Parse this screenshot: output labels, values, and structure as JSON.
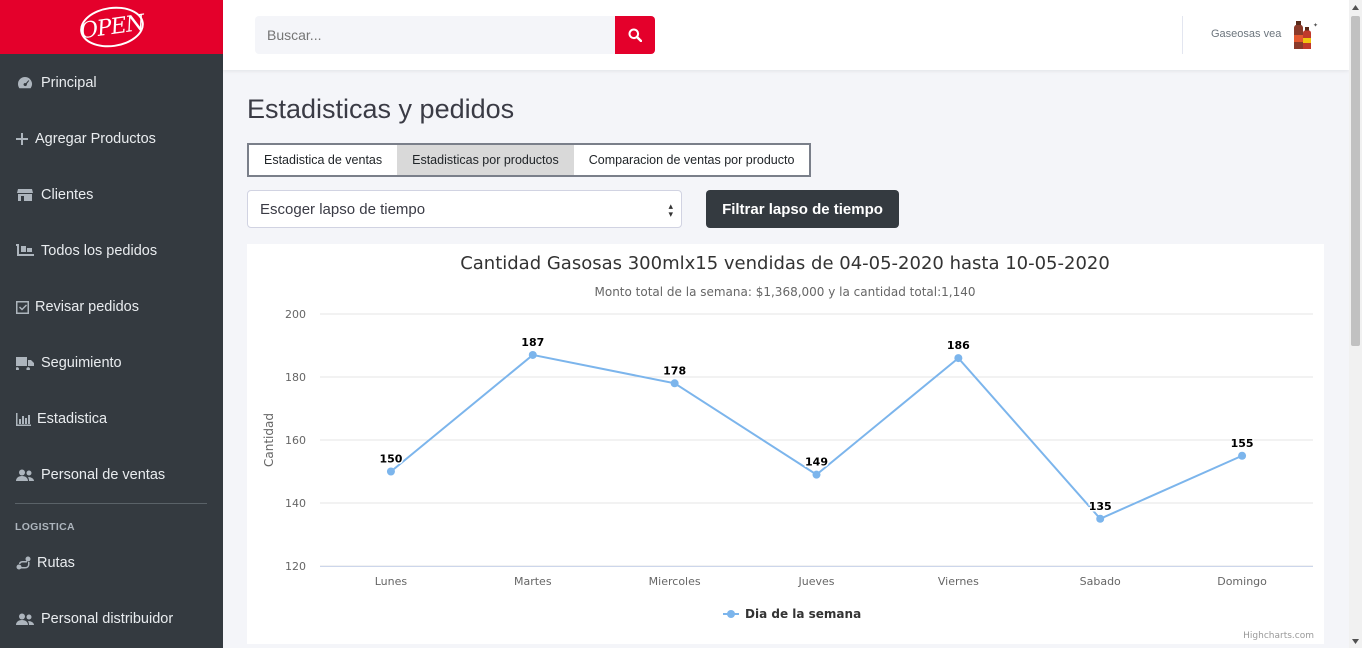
{
  "sidebar": {
    "brand": "OPEN",
    "items": [
      {
        "label": "Principal",
        "icon": "dashboard-icon"
      },
      {
        "label": "Agregar Productos",
        "icon": "plus-icon"
      },
      {
        "label": "Clientes",
        "icon": "store-icon"
      },
      {
        "label": "Todos los pedidos",
        "icon": "dolly-icon"
      },
      {
        "label": "Revisar pedidos",
        "icon": "checkbox-icon"
      },
      {
        "label": "Seguimiento",
        "icon": "truck-icon"
      },
      {
        "label": "Estadistica",
        "icon": "chart-icon"
      },
      {
        "label": "Personal de ventas",
        "icon": "users-icon"
      }
    ],
    "section": "LOGISTICA",
    "section_items": [
      {
        "label": "Rutas",
        "icon": "route-icon"
      },
      {
        "label": "Personal distribuidor",
        "icon": "users-icon"
      }
    ]
  },
  "topbar": {
    "search_placeholder": "Buscar...",
    "user_name": "Gaseosas vea",
    "accent": "#e4002b"
  },
  "main": {
    "title": "Estadisticas y pedidos",
    "tabs": [
      {
        "label": "Estadistica de ventas",
        "active": false
      },
      {
        "label": "Estadisticas por productos",
        "active": true
      },
      {
        "label": "Comparacion de ventas por producto",
        "active": false
      }
    ],
    "select_value": "Escoger lapso de tiempo",
    "filter_button": "Filtrar lapso de tiempo"
  },
  "chart_data": {
    "type": "line",
    "title": "Cantidad Gasosas 300mlx15 vendidas de 04-05-2020 hasta 10-05-2020",
    "subtitle": "Monto total de la semana: $1,368,000 y la cantidad total:1,140",
    "categories": [
      "Lunes",
      "Martes",
      "Miercoles",
      "Jueves",
      "Viernes",
      "Sabado",
      "Domingo"
    ],
    "series": [
      {
        "name": "Dia de la semana",
        "values": [
          150,
          187,
          178,
          149,
          186,
          135,
          155
        ],
        "color": "#7cb5ec"
      }
    ],
    "ylabel": "Cantidad",
    "ylim": [
      120,
      200
    ],
    "yticks": [
      120,
      140,
      160,
      180,
      200
    ],
    "grid": true,
    "legend": "bottom-center",
    "credits": "Highcharts.com"
  }
}
